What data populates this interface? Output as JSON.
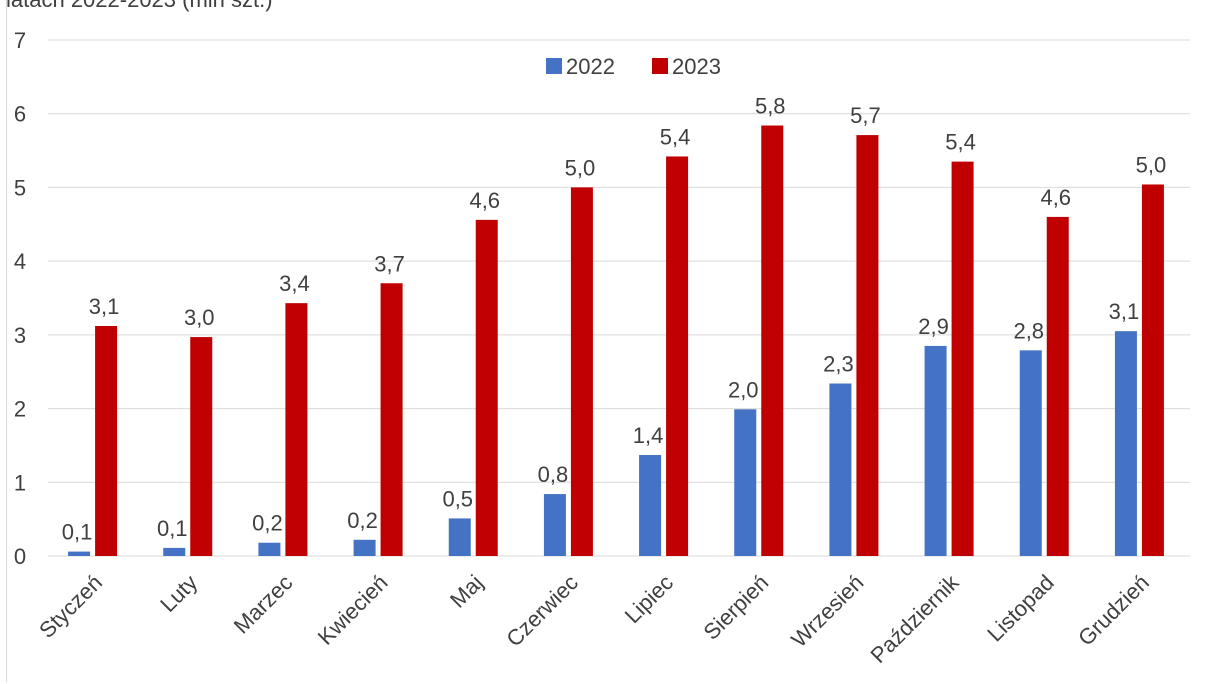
{
  "title_fragment": "latach 2022-2023 (mln szt.)",
  "chart_data": {
    "type": "bar",
    "categories": [
      "Styczeń",
      "Luty",
      "Marzec",
      "Kwiecień",
      "Maj",
      "Czerwiec",
      "Lipiec",
      "Sierpień",
      "Wrzesień",
      "Październik",
      "Listopad",
      "Grudzień"
    ],
    "series": [
      {
        "name": "2022",
        "color": "#4472C4",
        "values": [
          0.06,
          0.11,
          0.18,
          0.22,
          0.51,
          0.84,
          1.37,
          1.99,
          2.34,
          2.85,
          2.79,
          3.05
        ],
        "labels": [
          "0,1",
          "0,1",
          "0,2",
          "0,2",
          "0,5",
          "0,8",
          "1,4",
          "2,0",
          "2,3",
          "2,9",
          "2,8",
          "3,1"
        ]
      },
      {
        "name": "2023",
        "color": "#C00000",
        "values": [
          3.12,
          2.97,
          3.43,
          3.7,
          4.56,
          5.0,
          5.42,
          5.84,
          5.71,
          5.35,
          4.6,
          5.04
        ],
        "labels": [
          "3,1",
          "3,0",
          "3,4",
          "3,7",
          "4,6",
          "5,0",
          "5,4",
          "5,8",
          "5,7",
          "5,4",
          "4,6",
          "5,0"
        ]
      }
    ],
    "yticks": [
      "0",
      "1",
      "2",
      "3",
      "4",
      "5",
      "6",
      "7"
    ],
    "ylim": [
      0,
      7
    ],
    "grid": true,
    "legend": "top-center",
    "gridline_color": "#d9d9d9"
  }
}
